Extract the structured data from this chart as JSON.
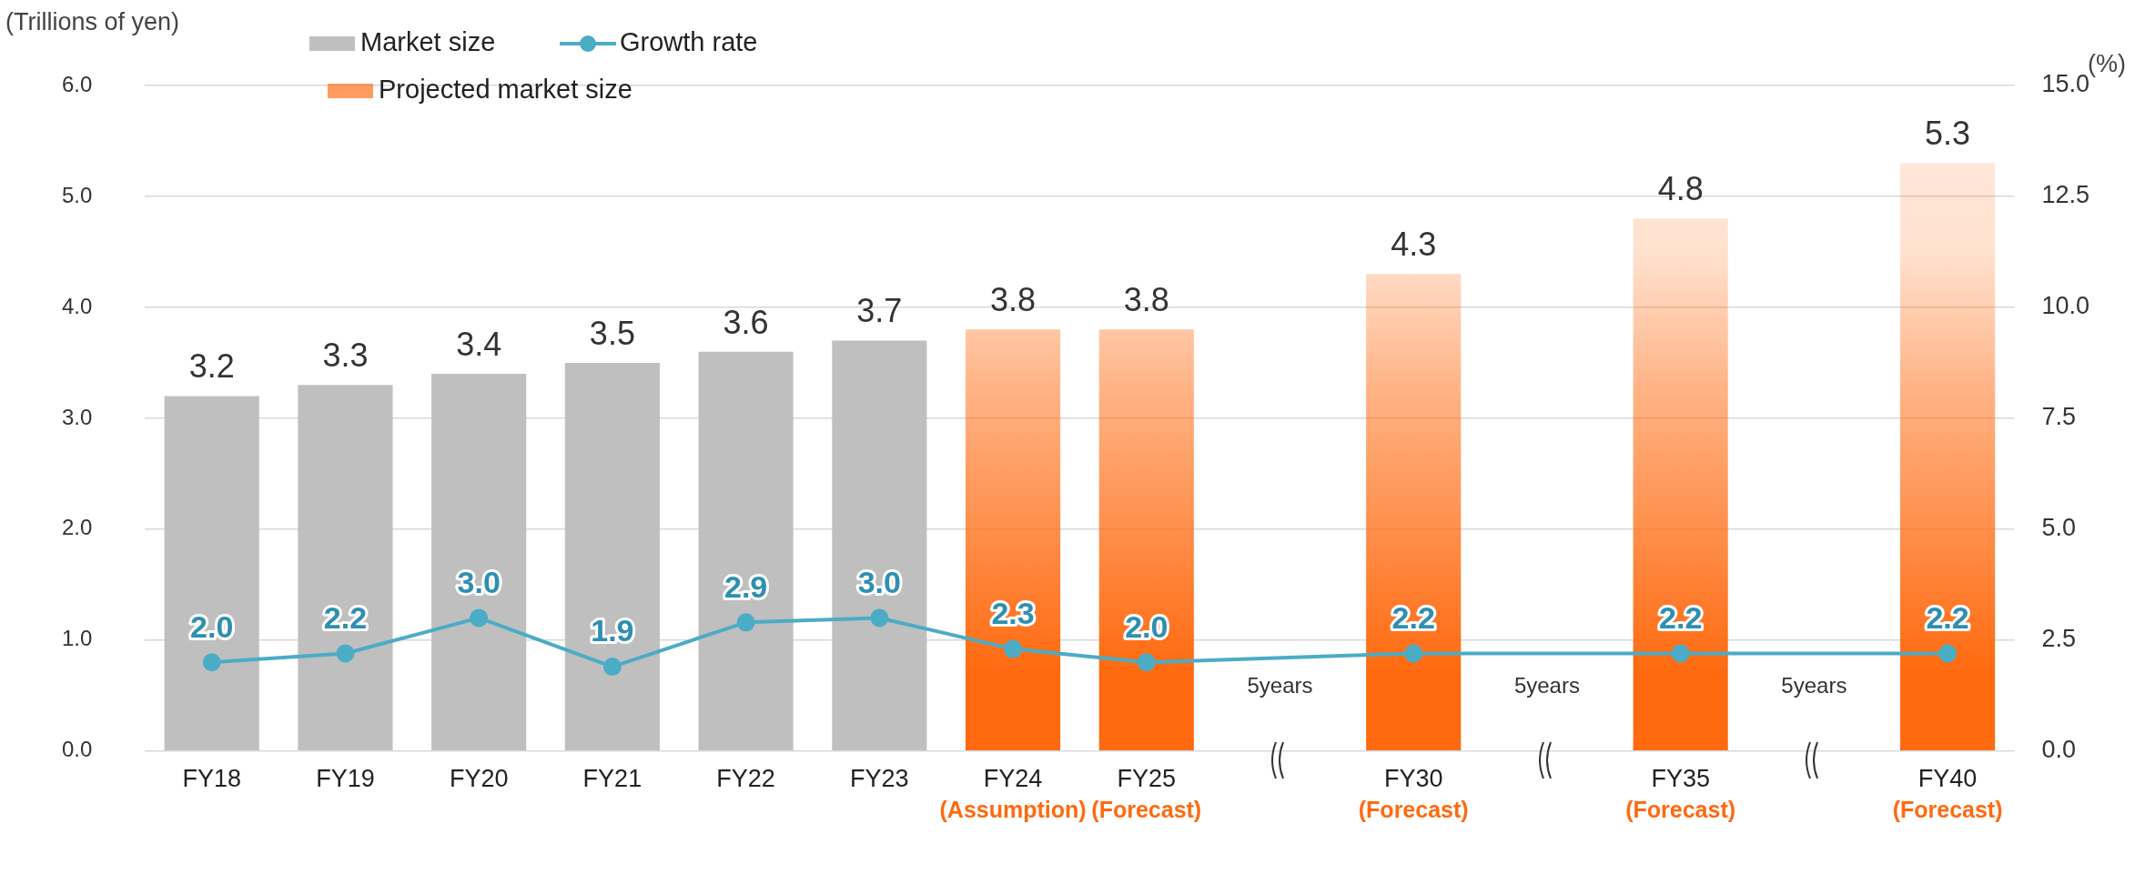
{
  "chart_data": {
    "type": "bar",
    "ylabel": "(Trillions of yen)",
    "y2label": "(%)",
    "categories": [
      "FY18",
      "FY19",
      "FY20",
      "FY21",
      "FY22",
      "FY23",
      "FY24\n(Assumption)",
      "FY25\n(Forecast)",
      null,
      "FY30\n(Forecast)",
      null,
      "FY35\n(Forecast)",
      null,
      "FY40\n(Forecast)"
    ],
    "series": [
      {
        "name": "Market size",
        "color": "#bfbfbf",
        "values": [
          3.2,
          3.3,
          3.4,
          3.5,
          3.6,
          3.7,
          null,
          null,
          null,
          null,
          null,
          null,
          null,
          null
        ],
        "value_labels": [
          "3.2",
          "3.3",
          "3.4",
          "3.5",
          "3.6",
          "3.7",
          null,
          null,
          null,
          null,
          null,
          null,
          null,
          null
        ]
      },
      {
        "name": "Growth rate",
        "type": "line",
        "axis": "y2",
        "color": "#4bacc6",
        "values": [
          2.0,
          2.2,
          3.0,
          1.9,
          2.9,
          3.0,
          2.3,
          2.0,
          null,
          2.2,
          null,
          2.2,
          null,
          2.2
        ],
        "value_labels": [
          "2.0",
          "2.2",
          "3.0",
          "1.9",
          "2.9",
          "3.0",
          "2.3",
          "2.0",
          null,
          "2.2",
          null,
          "2.2",
          null,
          "2.2"
        ]
      },
      {
        "name": "Projected market size",
        "color": "#ff6a10",
        "values": [
          null,
          null,
          null,
          null,
          null,
          null,
          3.8,
          3.8,
          null,
          4.3,
          null,
          4.8,
          null,
          5.3
        ],
        "value_labels": [
          null,
          null,
          null,
          null,
          null,
          null,
          "3.8",
          "3.8",
          null,
          "4.3",
          null,
          "4.8",
          null,
          "5.3"
        ]
      }
    ],
    "ylim": [
      0,
      6
    ],
    "yticks": [
      {
        "value": 0,
        "label": "0.0"
      },
      {
        "value": 1,
        "label": "1.0"
      },
      {
        "value": 2,
        "label": "2.0"
      },
      {
        "value": 3,
        "label": "3.0"
      },
      {
        "value": 4,
        "label": "4.0"
      },
      {
        "value": 5,
        "label": "5.0"
      },
      {
        "value": 6,
        "label": "6.0"
      }
    ],
    "y2lim": [
      0,
      15
    ],
    "y2ticks": [
      {
        "value": 0,
        "label": "0.0"
      },
      2.5,
      {
        "value": 5,
        "label": "5.0"
      },
      7.5,
      {
        "value": 10,
        "label": "10.0"
      },
      12.5,
      {
        "value": 15,
        "label": "15.0"
      }
    ],
    "annotations": [
      "5years",
      "5years",
      "5years"
    ],
    "grid": "y",
    "legend": "top left",
    "marker": "circle",
    "data_labels": true
  }
}
